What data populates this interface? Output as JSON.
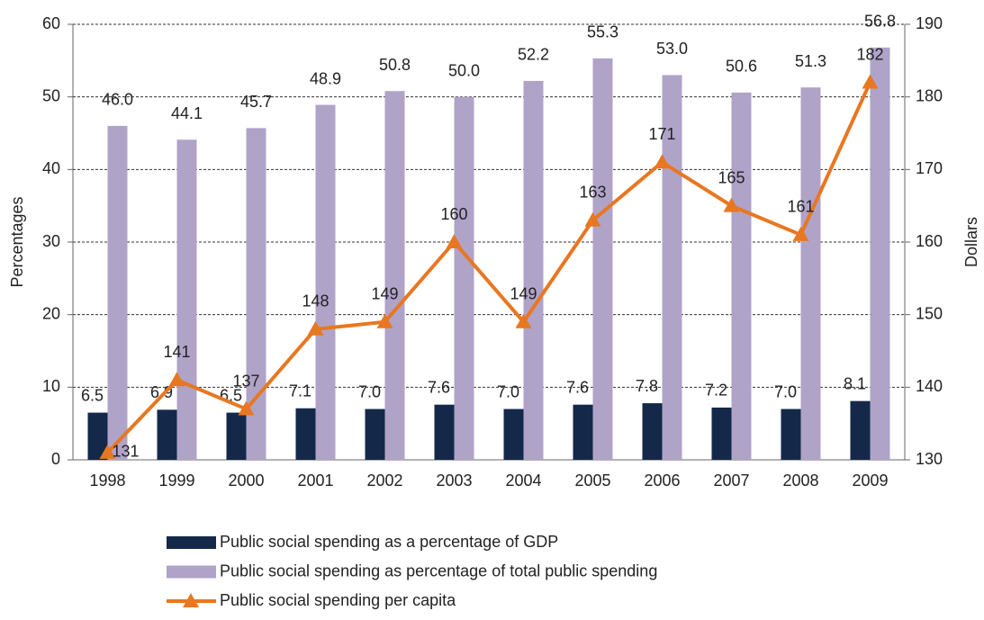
{
  "chart_data": {
    "type": "bar",
    "categories": [
      "1998",
      "1999",
      "2000",
      "2001",
      "2002",
      "2003",
      "2004",
      "2005",
      "2006",
      "2007",
      "2008",
      "2009"
    ],
    "y_label": "Percentages",
    "y2_label": "Dollars",
    "ylim": [
      0,
      60
    ],
    "yticks": [
      0,
      10,
      20,
      30,
      40,
      50,
      60
    ],
    "y2lim": [
      130,
      190
    ],
    "y2ticks": [
      130,
      140,
      150,
      160,
      170,
      180,
      190
    ],
    "grid": true,
    "series": [
      {
        "name": "Public social spending as a percentage of GDP",
        "type": "bar",
        "color": "#14294a",
        "values": [
          6.5,
          6.9,
          6.5,
          7.1,
          7.0,
          7.6,
          7.0,
          7.6,
          7.8,
          7.2,
          7.0,
          8.1
        ],
        "value_labels": [
          "6.5",
          "6.9",
          "6.5",
          "7.1",
          "7.0",
          "7.6",
          "7.0",
          "7.6",
          "7.8",
          "7.2",
          "7.0",
          "8.1"
        ]
      },
      {
        "name": "Public social spending as percentage of total public spending",
        "type": "bar",
        "color": "#b0a3c8",
        "values": [
          46.0,
          44.1,
          45.7,
          48.9,
          50.8,
          50.0,
          52.2,
          55.3,
          53.0,
          50.6,
          51.3,
          56.8
        ],
        "value_labels": [
          "46.0",
          "44.1",
          "45.7",
          "48.9",
          "50.8",
          "50.0",
          "52.2",
          "55.3",
          "53.0",
          "50.6",
          "51.3",
          "56.8"
        ]
      },
      {
        "name": "Public social spending per capita",
        "type": "line",
        "axis": "y2",
        "color": "#e87722",
        "values": [
          131,
          141,
          137,
          148,
          149,
          160,
          149,
          163,
          171,
          165,
          161,
          182
        ]
      }
    ]
  }
}
